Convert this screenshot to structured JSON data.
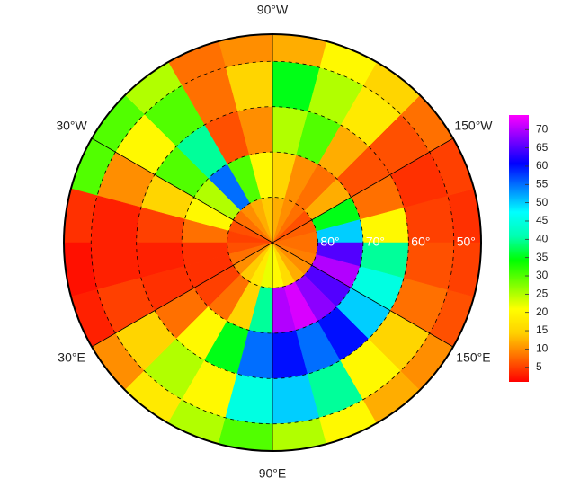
{
  "map": {
    "lat_edges": [
      90,
      80,
      70,
      60,
      50,
      44
    ],
    "lon_edges": [
      -180,
      -165,
      -150,
      -135,
      -120,
      -105,
      -90,
      -75,
      -60,
      -45,
      -30,
      -15,
      0,
      15,
      30,
      45,
      60,
      75,
      90,
      105,
      120,
      135,
      150,
      165,
      180
    ],
    "values": [
      [
        8,
        7,
        6,
        8,
        10,
        12,
        14,
        12,
        10,
        8,
        6,
        5,
        6,
        8,
        10,
        14,
        18,
        22,
        20,
        16,
        12,
        10,
        9,
        8
      ],
      [
        50,
        35,
        12,
        8,
        10,
        15,
        20,
        30,
        55,
        25,
        20,
        8,
        4,
        4,
        5,
        8,
        15,
        40,
        70,
        72,
        68,
        65,
        70,
        65
      ],
      [
        20,
        8,
        6,
        12,
        30,
        25,
        10,
        6,
        40,
        30,
        15,
        5,
        3,
        4,
        8,
        20,
        35,
        55,
        60,
        55,
        60,
        50,
        45,
        40
      ],
      [
        5,
        4,
        6,
        18,
        25,
        35,
        15,
        8,
        30,
        20,
        10,
        3,
        3,
        5,
        15,
        25,
        20,
        45,
        50,
        40,
        20,
        15,
        8,
        6
      ],
      [
        4,
        5,
        8,
        15,
        20,
        12,
        10,
        8,
        25,
        30,
        30,
        4,
        2,
        3,
        10,
        18,
        25,
        30,
        25,
        20,
        12,
        10,
        6,
        5
      ]
    ],
    "lon_labels": [
      {
        "value": -90,
        "label": "90°W"
      },
      {
        "value": -30,
        "label": "30°W"
      },
      {
        "value": -150,
        "label": "150°W"
      },
      {
        "value": 30,
        "label": "30°E"
      },
      {
        "value": 150,
        "label": "150°E"
      },
      {
        "value": 90,
        "label": "90°E"
      }
    ],
    "lat_labels": [
      {
        "value": 80,
        "label": "80°"
      },
      {
        "value": 70,
        "label": "70°"
      },
      {
        "value": 60,
        "label": "60°"
      },
      {
        "value": 50,
        "label": "50°"
      }
    ]
  },
  "colorbar": {
    "lim": [
      1,
      74
    ],
    "ticks": [
      5,
      10,
      15,
      20,
      25,
      30,
      35,
      40,
      45,
      50,
      55,
      60,
      65,
      70
    ],
    "colormap": [
      "#ff0000",
      "#ff6a00",
      "#ffd000",
      "#ffff00",
      "#80ff00",
      "#00ff00",
      "#00ffb0",
      "#00ffff",
      "#0080ff",
      "#0000ff",
      "#8000ff",
      "#ff00ff"
    ]
  }
}
